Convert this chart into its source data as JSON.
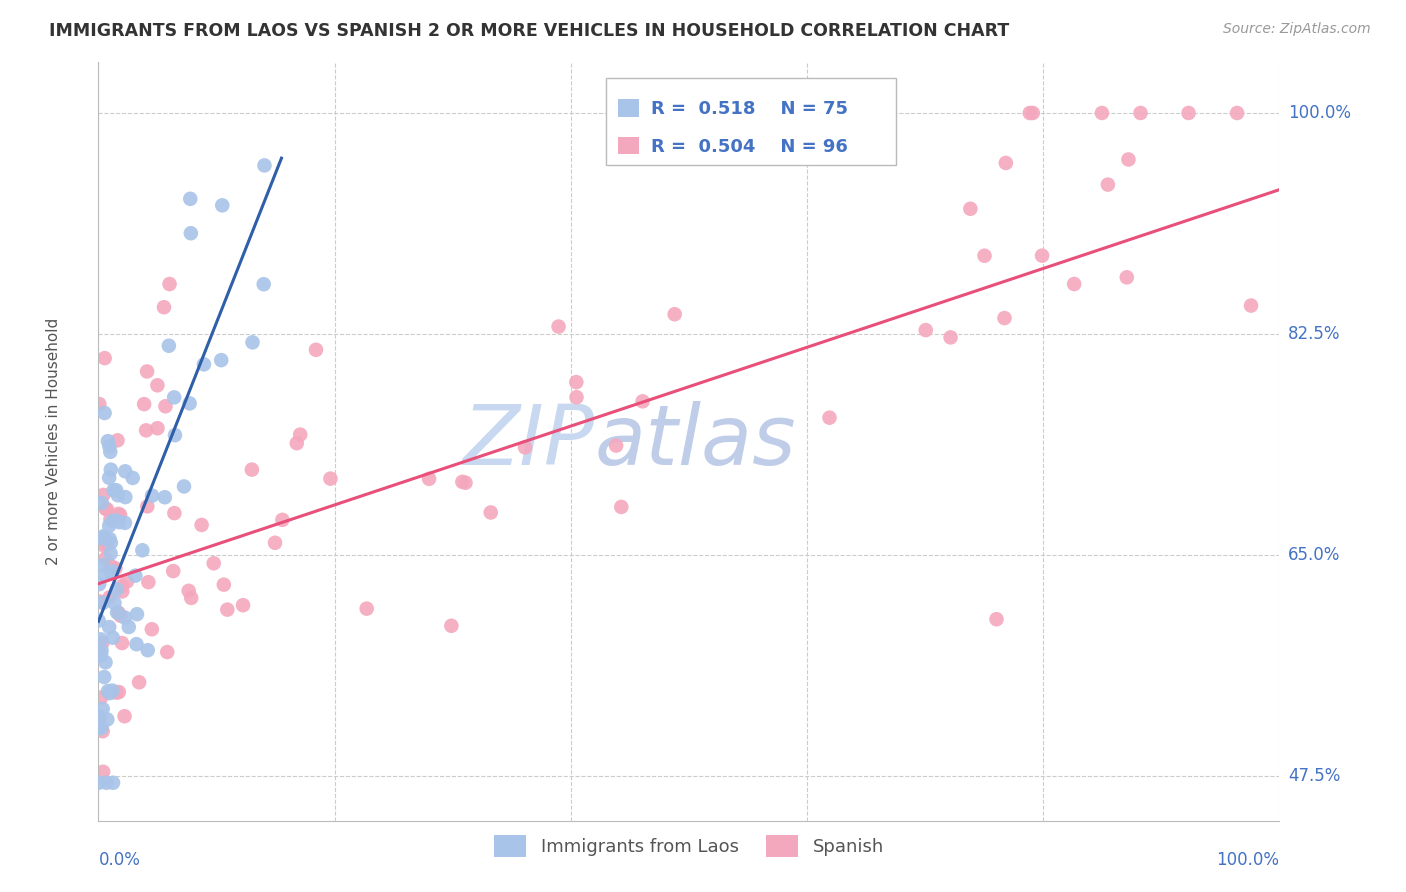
{
  "title": "IMMIGRANTS FROM LAOS VS SPANISH 2 OR MORE VEHICLES IN HOUSEHOLD CORRELATION CHART",
  "source": "Source: ZipAtlas.com",
  "ylabel": "2 or more Vehicles in Household",
  "yticks_labels": [
    "47.5%",
    "65.0%",
    "82.5%",
    "100.0%"
  ],
  "yticks_vals": [
    0.475,
    0.65,
    0.825,
    1.0
  ],
  "legend_blue_R": "0.518",
  "legend_blue_N": "75",
  "legend_pink_R": "0.504",
  "legend_pink_N": "96",
  "blue_color": "#A8C4E8",
  "pink_color": "#F4A8BE",
  "blue_line_color": "#2F5FA8",
  "pink_line_color": "#E8507A",
  "axis_label_color": "#4472C4",
  "grid_color": "#CCCCCC",
  "watermark_zip": "ZIP",
  "watermark_atlas": "atlas",
  "xlim": [
    0.0,
    1.0
  ],
  "ylim": [
    0.44,
    1.04
  ]
}
